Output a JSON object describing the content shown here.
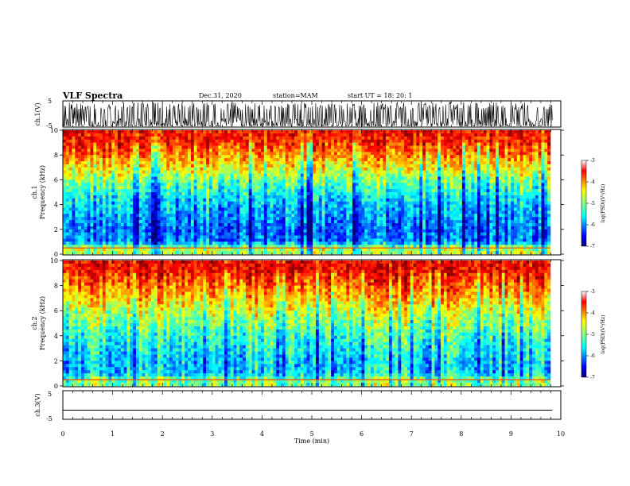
{
  "header": {
    "title": "VLF Spectra",
    "date": "Dec.31, 2020",
    "station": "station=MAM",
    "start_ut": "start  UT =   18: 20: 1"
  },
  "chart_data": [
    {
      "type": "line",
      "panel": "ch1-waveform",
      "ylabel": "ch.1(V)",
      "xlim": [
        0,
        10
      ],
      "ylim": [
        -5,
        5
      ],
      "yticks": [
        "5",
        "-5"
      ],
      "description_of_values": "dense oscillating waveform spanning approximately -5 to 4.5 V over 0–9.8 min"
    },
    {
      "type": "heatmap",
      "panel": "ch1-spectrogram",
      "ylabel_top": "ch.1",
      "ylabel": "Frequency (kHz)",
      "xlim": [
        0,
        9.83
      ],
      "ylim": [
        0,
        10
      ],
      "yticks": [
        "0",
        "2",
        "4",
        "6",
        "8",
        "10"
      ],
      "colorbar": {
        "label": "log(PSD)(V²/Hz)",
        "range": [
          -7,
          -3
        ],
        "ticks": [
          "-3",
          "-4",
          "-5",
          "-6",
          "-7"
        ]
      },
      "approx_profile_logpsd_by_freq_khz": [
        [
          0.5,
          -4.8
        ],
        [
          1,
          -6.0
        ],
        [
          2,
          -6.1
        ],
        [
          3,
          -5.9
        ],
        [
          4,
          -5.7
        ],
        [
          5,
          -5.4
        ],
        [
          6,
          -5.0
        ],
        [
          7,
          -4.5
        ],
        [
          8,
          -4.0
        ],
        [
          9,
          -3.6
        ],
        [
          10,
          -3.5
        ]
      ]
    },
    {
      "type": "heatmap",
      "panel": "ch2-spectrogram",
      "ylabel_top": "ch.2",
      "ylabel": "Frequency (kHz)",
      "xlim": [
        0,
        9.83
      ],
      "ylim": [
        0,
        10
      ],
      "yticks": [
        "0",
        "2",
        "4",
        "6",
        "8",
        "10"
      ],
      "colorbar": {
        "label": "log(PSD)(V²/Hz)",
        "range": [
          -7,
          -3
        ],
        "ticks": [
          "-3",
          "-4",
          "-5",
          "-6",
          "-7"
        ]
      },
      "approx_profile_logpsd_by_freq_khz": [
        [
          0.5,
          -4.9
        ],
        [
          1,
          -5.6
        ],
        [
          2,
          -5.6
        ],
        [
          3,
          -5.4
        ],
        [
          4,
          -5.2
        ],
        [
          5,
          -4.9
        ],
        [
          6,
          -4.6
        ],
        [
          7,
          -4.2
        ],
        [
          8,
          -3.8
        ],
        [
          9,
          -3.5
        ],
        [
          10,
          -3.4
        ]
      ]
    },
    {
      "type": "line",
      "panel": "ch3-waveform",
      "ylabel": "ch.3(V)",
      "xlim": [
        0,
        10
      ],
      "ylim": [
        -5,
        5
      ],
      "yticks": [
        "5",
        "-5"
      ],
      "x": [
        0,
        9.83
      ],
      "y": [
        -1.8,
        -1.8
      ]
    }
  ],
  "x_axis": {
    "label": "Time (min)",
    "ticks": [
      "0",
      "1",
      "2",
      "3",
      "4",
      "5",
      "6",
      "7",
      "8",
      "9",
      "10"
    ]
  },
  "colors": {
    "jet": [
      "#00007f",
      "#0000ff",
      "#007fff",
      "#00ffff",
      "#7fff7f",
      "#ffff00",
      "#ff7f00",
      "#ff0000",
      "#7f0000"
    ]
  }
}
